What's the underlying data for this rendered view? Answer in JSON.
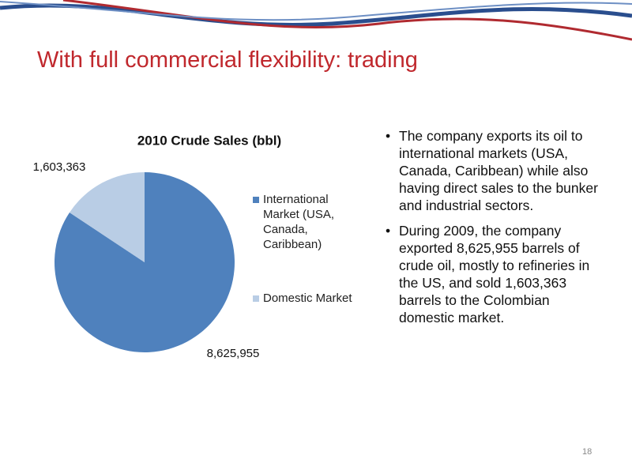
{
  "slide": {
    "title": "With full commercial flexibility: trading",
    "bullets": [
      "The company exports its oil to international markets (USA, Canada, Caribbean) while also having direct sales to the bunker and industrial sectors.",
      "During 2009, the company exported 8,625,955 barrels of crude oil, mostly to refineries in the US, and sold 1,603,363 barrels to the Colombian domestic market."
    ],
    "page_number": "18"
  },
  "chart_data": {
    "type": "pie",
    "title": "2010 Crude Sales (bbl)",
    "categories": [
      "International Market (USA, Canada, Caribbean)",
      "Domestic Market"
    ],
    "values": [
      8625955,
      1603363
    ],
    "value_labels": [
      "8,625,955",
      "1,603,363"
    ],
    "colors": [
      "#4f81bd",
      "#b9cde5"
    ],
    "legend": "right"
  }
}
